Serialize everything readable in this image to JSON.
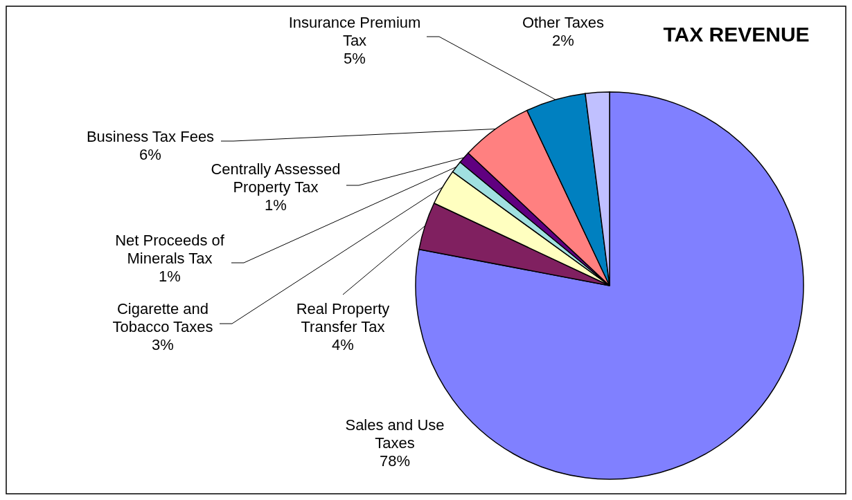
{
  "chart_data": {
    "type": "pie",
    "title": "TAX REVENUE",
    "categories": [
      "Sales and Use Taxes",
      "Real Property Transfer Tax",
      "Cigarette and Tobacco Taxes",
      "Net Proceeds of Minerals Tax",
      "Centrally Assessed Property Tax",
      "Business Tax Fees",
      "Insurance Premium Tax",
      "Other Taxes"
    ],
    "values": [
      78,
      4,
      3,
      1,
      1,
      6,
      5,
      2
    ],
    "value_labels": [
      "78%",
      "4%",
      "3%",
      "1%",
      "1%",
      "6%",
      "5%",
      "2%"
    ],
    "colors": [
      "#8080ff",
      "#802060",
      "#ffffc0",
      "#a0e0e0",
      "#600080",
      "#ff8080",
      "#0080c0",
      "#c0c0ff"
    ]
  }
}
